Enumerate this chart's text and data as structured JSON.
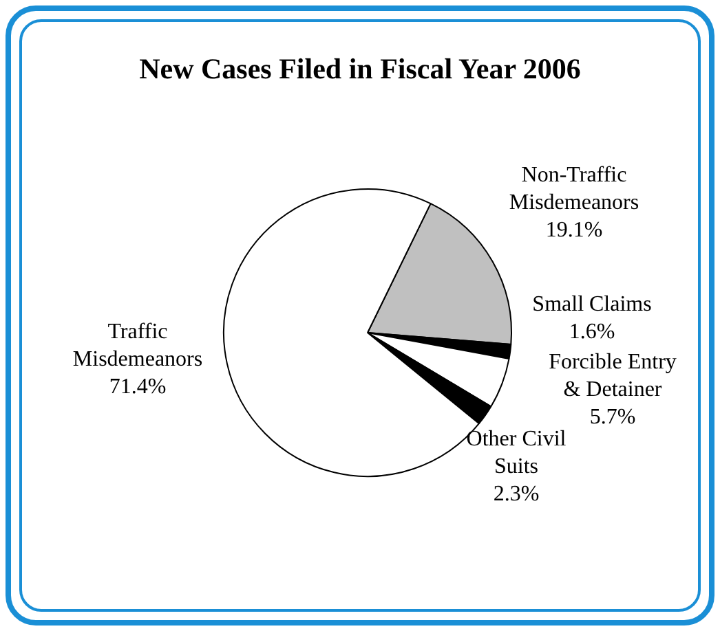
{
  "chart_data": {
    "type": "pie",
    "title": "New Cases Filed in Fiscal Year 2006",
    "categories": [
      "Non-Traffic Misdemeanors",
      "Small Claims",
      "Forcible Entry & Detainer",
      "Other Civil Suits",
      "Traffic Misdemeanors"
    ],
    "values": [
      19.1,
      1.6,
      5.7,
      2.3,
      71.4
    ],
    "value_labels": [
      "19.1%",
      "1.6%",
      "5.7%",
      "2.3%",
      "71.4%"
    ],
    "colors": [
      "#c0c0c0",
      "#000000",
      "#ffffff",
      "#000000",
      "#ffffff"
    ],
    "legend": false
  }
}
